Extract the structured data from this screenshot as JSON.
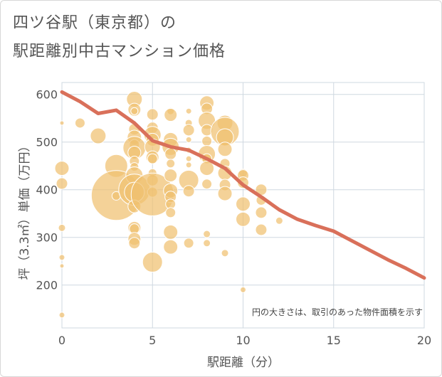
{
  "title_line1": "四ツ谷駅（東京都）の",
  "title_line2": "駅距離別中古マンション価格",
  "chart_data": {
    "type": "scatter",
    "xlabel": "駅距離（分）",
    "ylabel": "坪（3.3㎡）単価（万円）",
    "xlim": [
      0,
      20
    ],
    "ylim": [
      110,
      625
    ],
    "x_ticks": [
      "0",
      "5",
      "10",
      "15",
      "20"
    ],
    "y_ticks": [
      "200",
      "300",
      "400",
      "500",
      "600"
    ],
    "x_tick_values": [
      0,
      5,
      10,
      15,
      20
    ],
    "y_tick_values": [
      200,
      300,
      400,
      500,
      600
    ],
    "note": "円の大きさは、取引のあった物件面積を示す",
    "bubble_color": "#f0c070",
    "line_color": "#d9705a",
    "grid": true,
    "trend_line": {
      "x": [
        0,
        1,
        2,
        3,
        4,
        5,
        6,
        7,
        8,
        9,
        10,
        11,
        12,
        13,
        14,
        15,
        16,
        17,
        18,
        19,
        20
      ],
      "y": [
        605,
        585,
        560,
        567,
        540,
        503,
        490,
        483,
        465,
        445,
        410,
        385,
        358,
        338,
        325,
        313,
        293,
        273,
        253,
        235,
        215
      ]
    },
    "points": [
      {
        "x": 0,
        "y": 540,
        "s": 3
      },
      {
        "x": 0,
        "y": 445,
        "s": 10
      },
      {
        "x": 0,
        "y": 413,
        "s": 8
      },
      {
        "x": 0,
        "y": 320,
        "s": 5
      },
      {
        "x": 0,
        "y": 258,
        "s": 4
      },
      {
        "x": 0,
        "y": 240,
        "s": 3
      },
      {
        "x": 0,
        "y": 137,
        "s": 4
      },
      {
        "x": 1,
        "y": 540,
        "s": 7
      },
      {
        "x": 2,
        "y": 513,
        "s": 11
      },
      {
        "x": 3,
        "y": 450,
        "s": 16
      },
      {
        "x": 3,
        "y": 388,
        "s": 35
      },
      {
        "x": 3,
        "y": 387,
        "s": 6
      },
      {
        "x": 4,
        "y": 590,
        "s": 11
      },
      {
        "x": 4,
        "y": 568,
        "s": 9
      },
      {
        "x": 4,
        "y": 565,
        "s": 5
      },
      {
        "x": 4,
        "y": 527,
        "s": 8
      },
      {
        "x": 4,
        "y": 510,
        "s": 10
      },
      {
        "x": 4,
        "y": 495,
        "s": 7
      },
      {
        "x": 4,
        "y": 488,
        "s": 16
      },
      {
        "x": 4,
        "y": 478,
        "s": 9
      },
      {
        "x": 4,
        "y": 460,
        "s": 7
      },
      {
        "x": 4,
        "y": 448,
        "s": 6
      },
      {
        "x": 4,
        "y": 430,
        "s": 12
      },
      {
        "x": 4,
        "y": 400,
        "s": 22
      },
      {
        "x": 4,
        "y": 395,
        "s": 14
      },
      {
        "x": 4,
        "y": 365,
        "s": 9
      },
      {
        "x": 4,
        "y": 320,
        "s": 9
      },
      {
        "x": 4,
        "y": 318,
        "s": 7
      },
      {
        "x": 4,
        "y": 297,
        "s": 9
      },
      {
        "x": 4,
        "y": 288,
        "s": 8
      },
      {
        "x": 5,
        "y": 558,
        "s": 8
      },
      {
        "x": 5,
        "y": 530,
        "s": 8
      },
      {
        "x": 5,
        "y": 515,
        "s": 12
      },
      {
        "x": 5,
        "y": 505,
        "s": 9
      },
      {
        "x": 5,
        "y": 490,
        "s": 11
      },
      {
        "x": 5,
        "y": 468,
        "s": 9
      },
      {
        "x": 5,
        "y": 465,
        "s": 7
      },
      {
        "x": 5,
        "y": 435,
        "s": 6
      },
      {
        "x": 5,
        "y": 420,
        "s": 8
      },
      {
        "x": 5,
        "y": 395,
        "s": 7
      },
      {
        "x": 5,
        "y": 390,
        "s": 30
      },
      {
        "x": 5,
        "y": 248,
        "s": 14
      },
      {
        "x": 6,
        "y": 565,
        "s": 5
      },
      {
        "x": 6,
        "y": 557,
        "s": 9
      },
      {
        "x": 6,
        "y": 505,
        "s": 10
      },
      {
        "x": 6,
        "y": 490,
        "s": 12
      },
      {
        "x": 6,
        "y": 475,
        "s": 8
      },
      {
        "x": 6,
        "y": 455,
        "s": 6
      },
      {
        "x": 6,
        "y": 430,
        "s": 9
      },
      {
        "x": 6,
        "y": 398,
        "s": 10
      },
      {
        "x": 6,
        "y": 385,
        "s": 8
      },
      {
        "x": 6,
        "y": 370,
        "s": 7
      },
      {
        "x": 6,
        "y": 352,
        "s": 7
      },
      {
        "x": 6,
        "y": 311,
        "s": 10
      },
      {
        "x": 6,
        "y": 280,
        "s": 10
      },
      {
        "x": 7,
        "y": 565,
        "s": 4
      },
      {
        "x": 7,
        "y": 540,
        "s": 5
      },
      {
        "x": 7,
        "y": 525,
        "s": 8
      },
      {
        "x": 7,
        "y": 505,
        "s": 4
      },
      {
        "x": 7,
        "y": 483,
        "s": 4
      },
      {
        "x": 7,
        "y": 465,
        "s": 4
      },
      {
        "x": 7,
        "y": 452,
        "s": 4
      },
      {
        "x": 7,
        "y": 420,
        "s": 14
      },
      {
        "x": 7,
        "y": 397,
        "s": 8
      },
      {
        "x": 7,
        "y": 288,
        "s": 7
      },
      {
        "x": 8,
        "y": 582,
        "s": 10
      },
      {
        "x": 8,
        "y": 570,
        "s": 8
      },
      {
        "x": 8,
        "y": 545,
        "s": 12
      },
      {
        "x": 8,
        "y": 525,
        "s": 8
      },
      {
        "x": 8,
        "y": 502,
        "s": 7
      },
      {
        "x": 8,
        "y": 475,
        "s": 12
      },
      {
        "x": 8,
        "y": 465,
        "s": 7
      },
      {
        "x": 8,
        "y": 445,
        "s": 10
      },
      {
        "x": 8,
        "y": 412,
        "s": 7
      },
      {
        "x": 8,
        "y": 307,
        "s": 5
      },
      {
        "x": 8,
        "y": 288,
        "s": 5
      },
      {
        "x": 9,
        "y": 540,
        "s": 11
      },
      {
        "x": 9,
        "y": 522,
        "s": 20
      },
      {
        "x": 9,
        "y": 510,
        "s": 12
      },
      {
        "x": 9,
        "y": 485,
        "s": 10
      },
      {
        "x": 9,
        "y": 455,
        "s": 7
      },
      {
        "x": 9,
        "y": 435,
        "s": 10
      },
      {
        "x": 9,
        "y": 410,
        "s": 8
      },
      {
        "x": 9,
        "y": 392,
        "s": 10
      },
      {
        "x": 9,
        "y": 267,
        "s": 5
      },
      {
        "x": 10,
        "y": 435,
        "s": 6
      },
      {
        "x": 10,
        "y": 430,
        "s": 8
      },
      {
        "x": 10,
        "y": 415,
        "s": 8
      },
      {
        "x": 10,
        "y": 370,
        "s": 10
      },
      {
        "x": 10,
        "y": 338,
        "s": 10
      },
      {
        "x": 10,
        "y": 190,
        "s": 4
      },
      {
        "x": 11,
        "y": 400,
        "s": 8
      },
      {
        "x": 11,
        "y": 378,
        "s": 7
      },
      {
        "x": 11,
        "y": 352,
        "s": 8
      },
      {
        "x": 11,
        "y": 316,
        "s": 8
      },
      {
        "x": 12,
        "y": 335,
        "s": 5
      }
    ]
  }
}
